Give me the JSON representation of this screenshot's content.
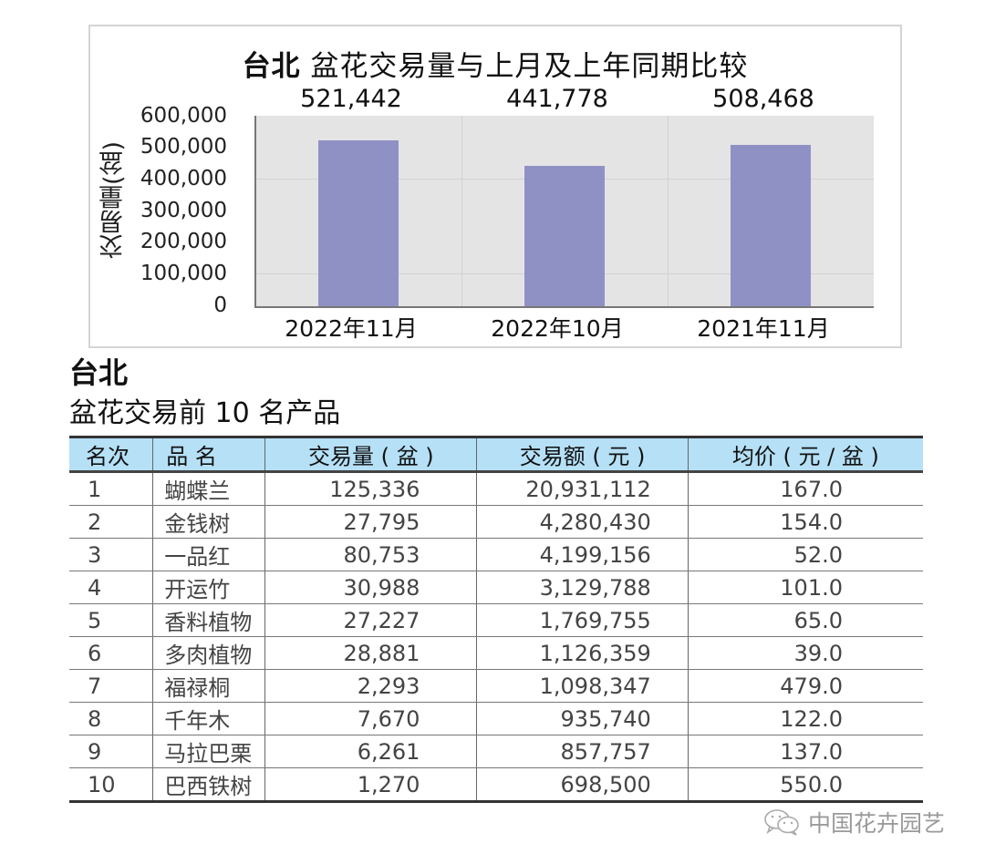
{
  "chart": {
    "title_city": "台北",
    "title_rest": " 盆花交易量与上月及上年同期比较",
    "ylabel": "交易量(盆)",
    "y_ticks": [
      "600,000",
      "500,000",
      "400,000",
      "300,000",
      "200,000",
      "100,000",
      "0"
    ],
    "bars": [
      {
        "label": "2022年11月",
        "value_label": "521,442",
        "value": 521442
      },
      {
        "label": "2022年10月",
        "value_label": "441,778",
        "value": 441778
      },
      {
        "label": "2021年11月",
        "value_label": "508,468",
        "value": 508468
      }
    ],
    "bar_color": "#8f91c5",
    "plot_bg": "#e4e4e4"
  },
  "chart_data": {
    "type": "bar",
    "title": "台北 盆花交易量与上月及上年同期比较",
    "categories": [
      "2022年11月",
      "2022年10月",
      "2021年11月"
    ],
    "values": [
      521442,
      441778,
      508468
    ],
    "data_labels": [
      "521,442",
      "441,778",
      "508,468"
    ],
    "xlabel": "",
    "ylabel": "交易量(盆)",
    "ylim": [
      0,
      600000
    ],
    "y_ticks": [
      0,
      100000,
      200000,
      300000,
      400000,
      500000,
      600000
    ],
    "grid": true,
    "legend": null,
    "colors": [
      "#8f91c5"
    ]
  },
  "table_section": {
    "city": "台北",
    "title": "盆花交易前 10 名产品",
    "header_color": "#b5e0f6",
    "columns": [
      "名次",
      "品 名",
      "交易量 ( 盆 )",
      "交易额 ( 元 )",
      "均价 ( 元 / 盆 )"
    ],
    "rows": [
      {
        "rank": "1",
        "name": "蝴蝶兰",
        "volume": "125,336",
        "amount": "20,931,112",
        "price": "167.0"
      },
      {
        "rank": "2",
        "name": "金钱树",
        "volume": "27,795",
        "amount": "4,280,430",
        "price": "154.0"
      },
      {
        "rank": "3",
        "name": "一品红",
        "volume": "80,753",
        "amount": "4,199,156",
        "price": "52.0"
      },
      {
        "rank": "4",
        "name": "开运竹",
        "volume": "30,988",
        "amount": "3,129,788",
        "price": "101.0"
      },
      {
        "rank": "5",
        "name": "香料植物",
        "volume": "27,227",
        "amount": "1,769,755",
        "price": "65.0"
      },
      {
        "rank": "6",
        "name": "多肉植物",
        "volume": "28,881",
        "amount": "1,126,359",
        "price": "39.0"
      },
      {
        "rank": "7",
        "name": "福禄桐",
        "volume": "2,293",
        "amount": "1,098,347",
        "price": "479.0"
      },
      {
        "rank": "8",
        "name": "千年木",
        "volume": "7,670",
        "amount": "935,740",
        "price": "122.0"
      },
      {
        "rank": "9",
        "name": "马拉巴栗",
        "volume": "6,261",
        "amount": "857,757",
        "price": "137.0"
      },
      {
        "rank": "10",
        "name": "巴西铁树",
        "volume": "1,270",
        "amount": "698,500",
        "price": "550.0"
      }
    ]
  },
  "watermark": {
    "icon": "wechat-icon",
    "text": "中国花卉园艺"
  }
}
